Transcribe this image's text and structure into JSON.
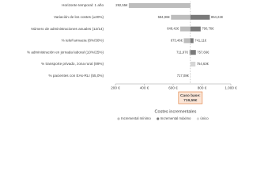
{
  "chart_data": {
    "type": "tornado",
    "categories": [
      "Horizonte temporal: 1 año",
      "Variación de los costes (±20%)",
      "Número de administraciones anuales (12/14)",
      "% teleFarmacia (8%/30%)",
      "% administración en jornada laboral (10%/25%)",
      "% transporte privado, zona rural (89%)",
      "% pacientes con EAs-RLI (55,0%)"
    ],
    "series": [
      {
        "name": "Incremental mínimo",
        "color": "#bdbdbd",
        "values": [
          292.55,
          584.96,
          648.42,
          673.46,
          711.97,
          null,
          null
        ],
        "value_labels": [
          "292,55€",
          "584,96€",
          "648,42€",
          "673,46€",
          "711,97€",
          null,
          null
        ]
      },
      {
        "name": "Incremental máximo",
        "color": "#7a7a7a",
        "values": [
          null,
          854.22,
          790.76,
          741.11,
          757.66,
          null,
          null
        ],
        "value_labels": [
          null,
          "854,22€",
          "790,76€",
          "741,11€",
          "757,66€",
          null,
          null
        ]
      },
      {
        "name": "único",
        "color": "#d6d6d6",
        "values": [
          null,
          null,
          null,
          null,
          null,
          754.63,
          717.08
        ],
        "value_labels": [
          null,
          null,
          null,
          null,
          null,
          "754,63€",
          "717,08€"
        ]
      }
    ],
    "base_label": "Caso base:",
    "base_value": 719.59,
    "base_value_label": "719,59€",
    "xlabel": "Costes incrementales",
    "xlim": [
      200,
      1000
    ],
    "xticks": [
      {
        "value": 200,
        "label": "200 €"
      },
      {
        "value": 400,
        "label": "400 €"
      },
      {
        "value": 600,
        "label": "600 €"
      },
      {
        "value": 800,
        "label": "800 €"
      },
      {
        "value": 1000,
        "label": "1.000 €"
      }
    ],
    "legend": "bottom"
  }
}
